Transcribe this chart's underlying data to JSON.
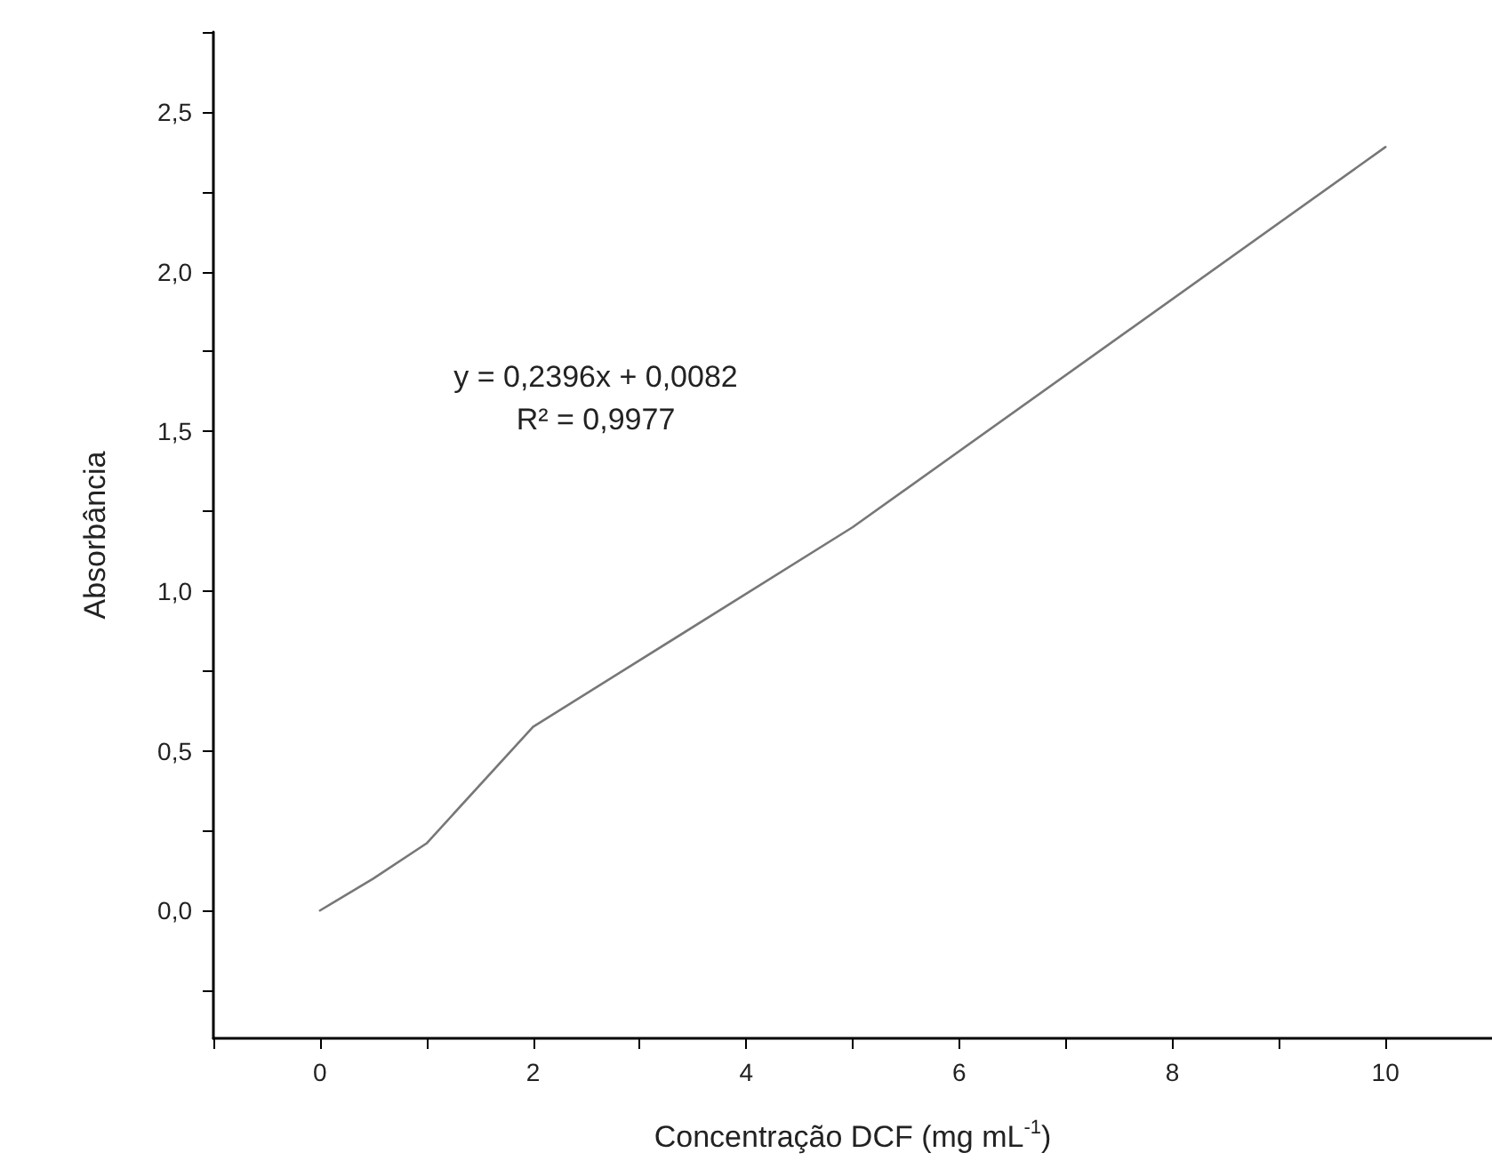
{
  "chart_data": {
    "type": "line",
    "xlabel": "Concentração DCF (mg mL$^{-1}$)",
    "ylabel": "Absorbância",
    "annotations": [
      "y = 0,2396x + 0,0082",
      "R² = 0,9977"
    ],
    "x": [
      0,
      0.5,
      1,
      2,
      5,
      10
    ],
    "series": [
      {
        "color": "#777777",
        "values": [
          0,
          0.1,
          0.21,
          0.575,
          1.2,
          2.39
        ]
      }
    ],
    "xlim": [
      -1,
      11
    ],
    "xticks": [
      {
        "value": -1,
        "label": null
      },
      0,
      {
        "value": 1,
        "label": null
      },
      2,
      {
        "value": 3,
        "label": null
      },
      4,
      {
        "value": 5,
        "label": null
      },
      6,
      {
        "value": 7,
        "label": null
      },
      8,
      {
        "value": 9,
        "label": null
      },
      10,
      {
        "value": 11,
        "label": null
      }
    ],
    "ylim": [
      -0.4,
      2.75
    ],
    "yticks": [
      {
        "value": -0.25,
        "label": null
      },
      {
        "value": 0,
        "label": "0,0"
      },
      {
        "value": 0.25,
        "label": null
      },
      {
        "value": 0.5,
        "label": "0,5"
      },
      {
        "value": 0.75,
        "label": null
      },
      {
        "value": 1,
        "label": "1,0"
      },
      {
        "value": 1.25,
        "label": null
      },
      {
        "value": 1.5,
        "label": "1,5"
      },
      {
        "value": 1.75,
        "label": null
      },
      {
        "value": 2,
        "label": "2,0"
      },
      {
        "value": 2.25,
        "label": null
      },
      {
        "value": 2.5,
        "label": "2,5"
      },
      {
        "value": 2.75,
        "label": null
      }
    ],
    "grid": false,
    "marker": "none",
    "line_style": "solid"
  }
}
